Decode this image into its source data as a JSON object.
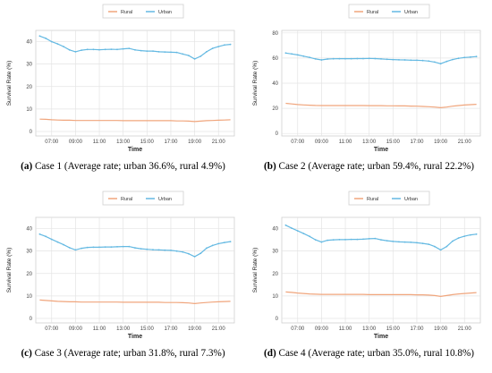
{
  "legend": {
    "items": [
      "Rural",
      "Urban"
    ]
  },
  "colors": {
    "rural": "#f0a57c",
    "urban": "#64b9e2",
    "grid": "#e4e4e4",
    "border": "#cfcfcf"
  },
  "axis_labels": {
    "x": "Time",
    "y": "Survival Rate (%)"
  },
  "x_ticks": [
    "07:00",
    "09:00",
    "11:00",
    "13:00",
    "15:00",
    "17:00",
    "19:00",
    "21:00"
  ],
  "panels": [
    {
      "caption_letter": "(a)",
      "caption_text": " Case 1 (Average rate; urban 36.6%, rural 4.9%)"
    },
    {
      "caption_letter": "(b)",
      "caption_text": " Case 2 (Average rate; urban 59.4%, rural 22.2%)"
    },
    {
      "caption_letter": "(c)",
      "caption_text": " Case 3 (Average rate; urban 31.8%, rural 7.3%)"
    },
    {
      "caption_letter": "(d)",
      "caption_text": " Case 4 (Average rate; urban 35.0%, rural 10.8%)"
    }
  ],
  "chart_data": [
    {
      "type": "line",
      "xlabel": "Time",
      "ylabel": "Survival Rate (%)",
      "ylim": [
        -2,
        45
      ],
      "yticks": [
        0,
        10,
        20,
        30,
        40
      ],
      "grid": true,
      "legend_position": "top",
      "x": [
        "06:00",
        "06:30",
        "07:00",
        "07:30",
        "08:00",
        "08:30",
        "09:00",
        "09:30",
        "10:00",
        "10:30",
        "11:00",
        "11:30",
        "12:00",
        "12:30",
        "13:00",
        "13:30",
        "14:00",
        "14:30",
        "15:00",
        "15:30",
        "16:00",
        "16:30",
        "17:00",
        "17:30",
        "18:00",
        "18:30",
        "19:00",
        "19:30",
        "20:00",
        "20:30",
        "21:00",
        "21:30",
        "22:00"
      ],
      "series": [
        {
          "name": "Rural",
          "values": [
            5.5,
            5.4,
            5.2,
            5.1,
            5.0,
            5.0,
            4.9,
            4.9,
            4.9,
            4.9,
            4.9,
            4.9,
            4.9,
            4.9,
            4.8,
            4.8,
            4.8,
            4.8,
            4.8,
            4.8,
            4.8,
            4.8,
            4.8,
            4.7,
            4.7,
            4.6,
            4.4,
            4.6,
            4.8,
            4.9,
            5.0,
            5.1,
            5.2
          ]
        },
        {
          "name": "Urban",
          "values": [
            42.5,
            41.5,
            40.0,
            39.0,
            37.8,
            36.3,
            35.5,
            36.2,
            36.5,
            36.5,
            36.4,
            36.5,
            36.6,
            36.5,
            36.8,
            37.0,
            36.3,
            36.0,
            35.8,
            35.8,
            35.5,
            35.4,
            35.3,
            35.2,
            34.5,
            33.8,
            32.3,
            33.5,
            35.5,
            37.0,
            37.8,
            38.5,
            38.8
          ]
        }
      ]
    },
    {
      "type": "line",
      "xlabel": "Time",
      "ylabel": "Survival Rate (%)",
      "ylim": [
        -2,
        82
      ],
      "yticks": [
        0,
        20,
        40,
        60,
        80
      ],
      "grid": true,
      "legend_position": "top",
      "x": [
        "06:00",
        "06:30",
        "07:00",
        "07:30",
        "08:00",
        "08:30",
        "09:00",
        "09:30",
        "10:00",
        "10:30",
        "11:00",
        "11:30",
        "12:00",
        "12:30",
        "13:00",
        "13:30",
        "14:00",
        "14:30",
        "15:00",
        "15:30",
        "16:00",
        "16:30",
        "17:00",
        "17:30",
        "18:00",
        "18:30",
        "19:00",
        "19:30",
        "20:00",
        "20:30",
        "21:00",
        "21:30",
        "22:00"
      ],
      "series": [
        {
          "name": "Rural",
          "values": [
            24.0,
            23.5,
            23.0,
            22.7,
            22.5,
            22.3,
            22.2,
            22.2,
            22.2,
            22.2,
            22.2,
            22.2,
            22.2,
            22.2,
            22.1,
            22.1,
            22.1,
            22.0,
            22.0,
            21.9,
            21.9,
            21.8,
            21.7,
            21.5,
            21.3,
            21.0,
            20.5,
            21.0,
            21.7,
            22.2,
            22.6,
            22.9,
            23.2
          ]
        },
        {
          "name": "Urban",
          "values": [
            64.0,
            63.3,
            62.5,
            61.5,
            60.5,
            59.3,
            58.5,
            59.2,
            59.4,
            59.5,
            59.5,
            59.5,
            59.6,
            59.6,
            59.7,
            59.6,
            59.3,
            59.0,
            58.8,
            58.6,
            58.5,
            58.3,
            58.2,
            58.0,
            57.6,
            56.8,
            55.5,
            57.3,
            58.8,
            59.8,
            60.4,
            60.8,
            61.2
          ]
        }
      ]
    },
    {
      "type": "line",
      "xlabel": "Time",
      "ylabel": "Survival Rate (%)",
      "ylim": [
        -2,
        45
      ],
      "yticks": [
        0,
        10,
        20,
        30,
        40
      ],
      "grid": true,
      "legend_position": "top",
      "x": [
        "06:00",
        "06:30",
        "07:00",
        "07:30",
        "08:00",
        "08:30",
        "09:00",
        "09:30",
        "10:00",
        "10:30",
        "11:00",
        "11:30",
        "12:00",
        "12:30",
        "13:00",
        "13:30",
        "14:00",
        "14:30",
        "15:00",
        "15:30",
        "16:00",
        "16:30",
        "17:00",
        "17:30",
        "18:00",
        "18:30",
        "19:00",
        "19:30",
        "20:00",
        "20:30",
        "21:00",
        "21:30",
        "22:00"
      ],
      "series": [
        {
          "name": "Rural",
          "values": [
            8.2,
            8.0,
            7.8,
            7.6,
            7.5,
            7.4,
            7.4,
            7.3,
            7.3,
            7.3,
            7.3,
            7.3,
            7.3,
            7.3,
            7.2,
            7.2,
            7.2,
            7.2,
            7.2,
            7.2,
            7.2,
            7.1,
            7.1,
            7.1,
            7.0,
            6.9,
            6.6,
            6.9,
            7.1,
            7.3,
            7.4,
            7.5,
            7.6
          ]
        },
        {
          "name": "Urban",
          "values": [
            37.5,
            36.5,
            35.2,
            34.0,
            32.8,
            31.5,
            30.5,
            31.2,
            31.6,
            31.7,
            31.7,
            31.8,
            31.8,
            31.9,
            32.0,
            32.0,
            31.4,
            31.0,
            30.8,
            30.6,
            30.5,
            30.4,
            30.3,
            30.0,
            29.6,
            28.8,
            27.5,
            29.0,
            31.3,
            32.5,
            33.3,
            33.8,
            34.2
          ]
        }
      ]
    },
    {
      "type": "line",
      "xlabel": "Time",
      "ylabel": "Survival Rate (%)",
      "ylim": [
        -2,
        45
      ],
      "yticks": [
        0,
        10,
        20,
        30,
        40
      ],
      "grid": true,
      "legend_position": "top",
      "x": [
        "06:00",
        "06:30",
        "07:00",
        "07:30",
        "08:00",
        "08:30",
        "09:00",
        "09:30",
        "10:00",
        "10:30",
        "11:00",
        "11:30",
        "12:00",
        "12:30",
        "13:00",
        "13:30",
        "14:00",
        "14:30",
        "15:00",
        "15:30",
        "16:00",
        "16:30",
        "17:00",
        "17:30",
        "18:00",
        "18:30",
        "19:00",
        "19:30",
        "20:00",
        "20:30",
        "21:00",
        "21:30",
        "22:00"
      ],
      "series": [
        {
          "name": "Rural",
          "values": [
            11.8,
            11.6,
            11.3,
            11.1,
            10.9,
            10.8,
            10.7,
            10.7,
            10.7,
            10.7,
            10.7,
            10.7,
            10.7,
            10.7,
            10.6,
            10.6,
            10.6,
            10.6,
            10.6,
            10.6,
            10.6,
            10.6,
            10.5,
            10.5,
            10.4,
            10.2,
            9.8,
            10.2,
            10.6,
            10.9,
            11.1,
            11.3,
            11.5
          ]
        },
        {
          "name": "Urban",
          "values": [
            41.5,
            40.2,
            39.0,
            37.8,
            36.5,
            35.0,
            34.0,
            34.8,
            35.0,
            35.1,
            35.1,
            35.2,
            35.2,
            35.3,
            35.5,
            35.6,
            35.0,
            34.6,
            34.3,
            34.1,
            34.0,
            33.9,
            33.7,
            33.4,
            33.0,
            32.0,
            30.5,
            32.0,
            34.4,
            35.8,
            36.6,
            37.2,
            37.5
          ]
        }
      ]
    }
  ]
}
